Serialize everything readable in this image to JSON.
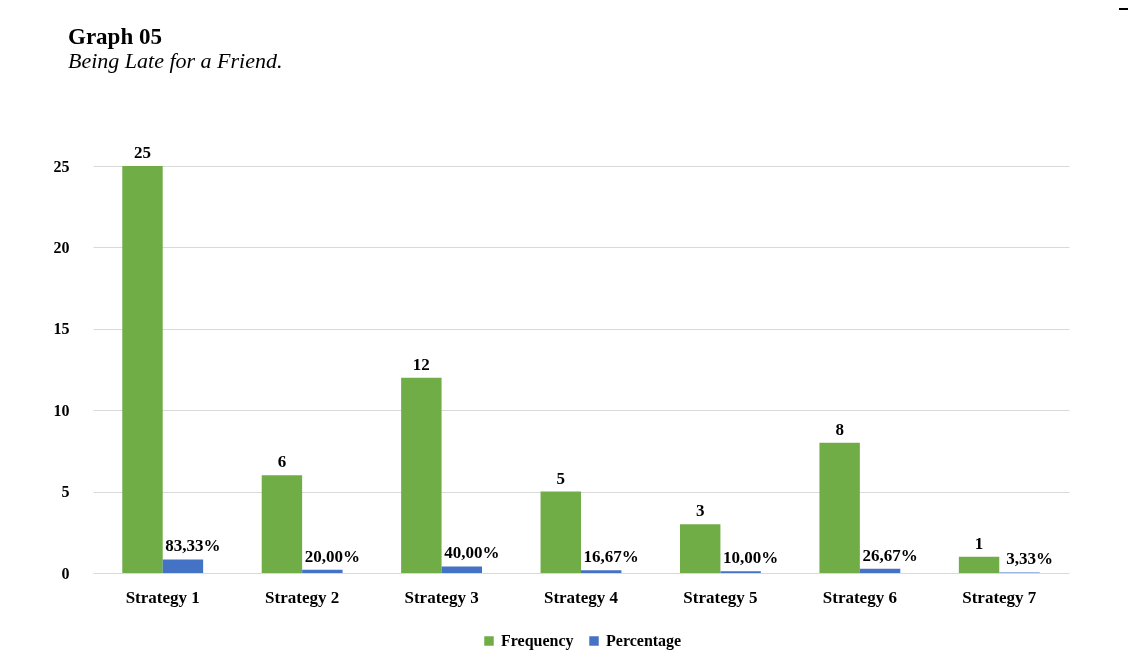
{
  "chart_data": {
    "type": "bar",
    "title": "Graph 05",
    "subtitle": "Being Late for a Friend.",
    "categories": [
      "Strategy 1",
      "Strategy 2",
      "Strategy 3",
      "Strategy 4",
      "Strategy 5",
      "Strategy 6",
      "Strategy 7"
    ],
    "series": [
      {
        "name": "Frequency",
        "color": "#70ad47",
        "values": [
          25,
          6,
          12,
          5,
          3,
          8,
          1
        ],
        "value_labels": [
          "25",
          "6",
          "12",
          "5",
          "3",
          "8",
          "1"
        ]
      },
      {
        "name": "Percentage",
        "color": "#4472c4",
        "values": [
          0.8333,
          0.2,
          0.4,
          0.1667,
          0.1,
          0.2667,
          0.0333
        ],
        "value_labels": [
          "83,33%",
          "20,00%",
          "40,00%",
          "16,67%",
          "10,00%",
          "26,67%",
          "3,33%"
        ]
      }
    ],
    "ylim": [
      0,
      25
    ],
    "yticks": [
      0,
      5,
      10,
      15,
      20,
      25
    ],
    "grid": "y",
    "legend": "bottom"
  }
}
